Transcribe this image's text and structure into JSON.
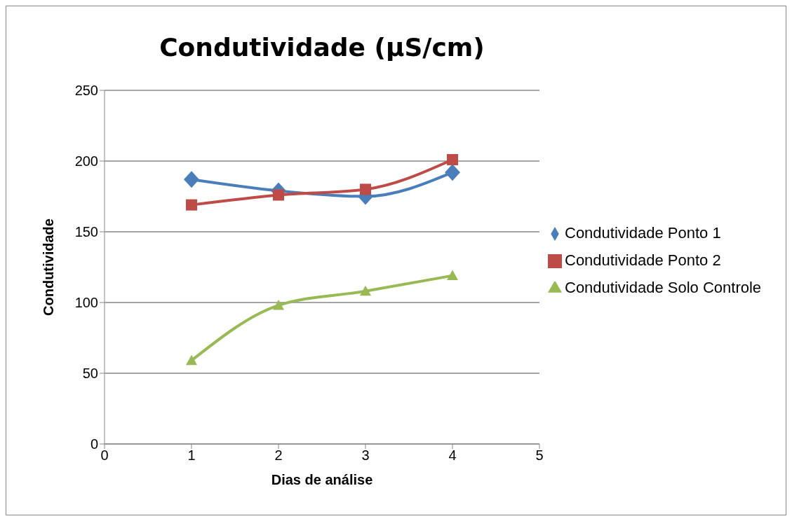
{
  "chart_data": {
    "type": "line",
    "title": "Condutividade (µS/cm)",
    "xlabel": "Dias de análise",
    "ylabel": "Condutividade",
    "x": [
      1,
      2,
      3,
      4
    ],
    "xlim": [
      0,
      5
    ],
    "xticks": [
      0,
      1,
      2,
      3,
      4,
      5
    ],
    "ylim": [
      0,
      250
    ],
    "yticks": [
      0,
      50,
      100,
      150,
      200,
      250
    ],
    "grid": "y",
    "legend": "right",
    "line_style": "solid",
    "series": [
      {
        "name": "Condutividade Ponto 1",
        "color": "#4a7ebb",
        "marker": "diamond",
        "values": [
          187,
          179,
          175,
          192
        ]
      },
      {
        "name": "Condutividade Ponto 2",
        "color": "#be4b48",
        "marker": "square",
        "values": [
          169,
          176,
          180,
          201
        ]
      },
      {
        "name": "Condutividade Solo Controle",
        "color": "#98b954",
        "marker": "triangle",
        "values": [
          59,
          98,
          108,
          119
        ]
      }
    ]
  }
}
